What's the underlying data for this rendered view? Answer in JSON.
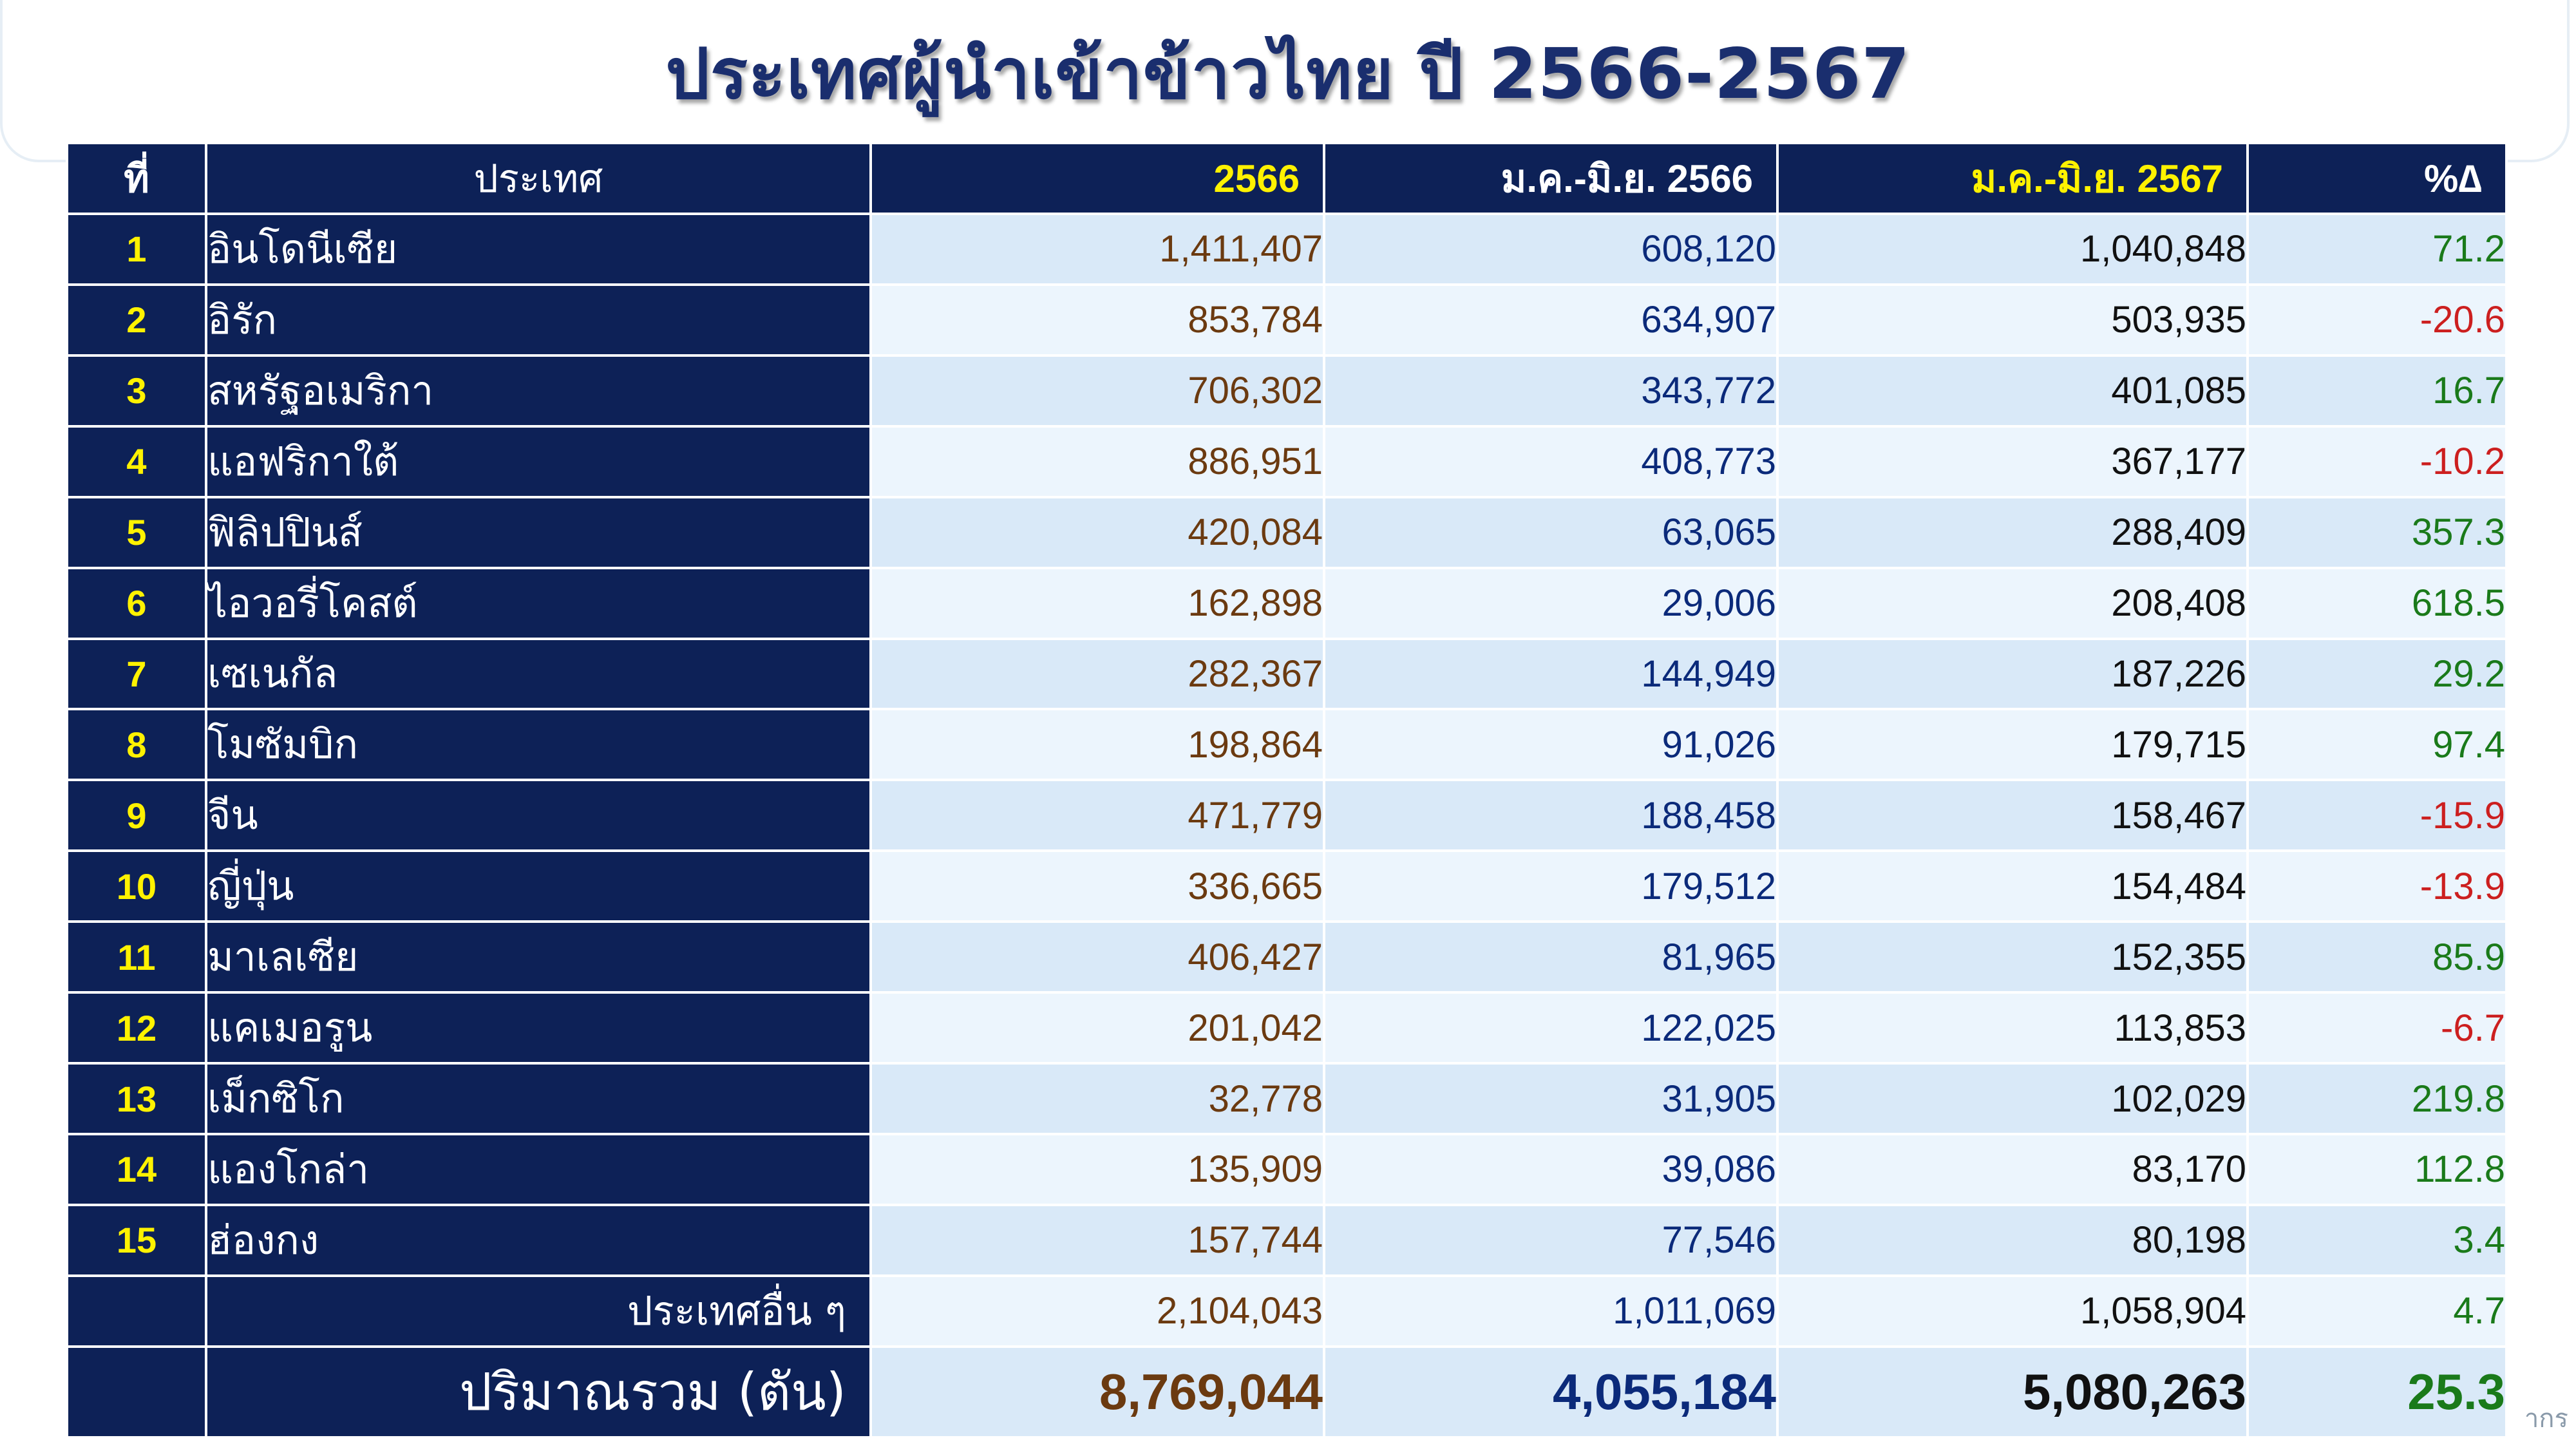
{
  "title": "ประเทศผู้นำเข้าข้าวไทย ปี 2566-2567",
  "table": {
    "headers": {
      "rank": "ที่",
      "country": "ประเทศ",
      "y2566": "2566",
      "jan_jun_2566": "ม.ค.-มิ.ย. 2566",
      "jan_jun_2567": "ม.ค.-มิ.ย. 2567",
      "pct_change": "%∆"
    },
    "rows": [
      {
        "rank": "1",
        "country": "อินโดนีเซีย",
        "y2566": "1,411,407",
        "jan_jun_2566": "608,120",
        "jan_jun_2567": "1,040,848",
        "pct_change": "71.2"
      },
      {
        "rank": "2",
        "country": "อิรัก",
        "y2566": "853,784",
        "jan_jun_2566": "634,907",
        "jan_jun_2567": "503,935",
        "pct_change": "-20.6"
      },
      {
        "rank": "3",
        "country": "สหรัฐอเมริกา",
        "y2566": "706,302",
        "jan_jun_2566": "343,772",
        "jan_jun_2567": "401,085",
        "pct_change": "16.7"
      },
      {
        "rank": "4",
        "country": "แอฟริกาใต้",
        "y2566": "886,951",
        "jan_jun_2566": "408,773",
        "jan_jun_2567": "367,177",
        "pct_change": "-10.2"
      },
      {
        "rank": "5",
        "country": "ฟิลิปปินส์",
        "y2566": "420,084",
        "jan_jun_2566": "63,065",
        "jan_jun_2567": "288,409",
        "pct_change": "357.3"
      },
      {
        "rank": "6",
        "country": "ไอวอรี่โคสต์",
        "y2566": "162,898",
        "jan_jun_2566": "29,006",
        "jan_jun_2567": "208,408",
        "pct_change": "618.5"
      },
      {
        "rank": "7",
        "country": "เซเนกัล",
        "y2566": "282,367",
        "jan_jun_2566": "144,949",
        "jan_jun_2567": "187,226",
        "pct_change": "29.2"
      },
      {
        "rank": "8",
        "country": "โมซัมบิก",
        "y2566": "198,864",
        "jan_jun_2566": "91,026",
        "jan_jun_2567": "179,715",
        "pct_change": "97.4"
      },
      {
        "rank": "9",
        "country": "จีน",
        "y2566": "471,779",
        "jan_jun_2566": "188,458",
        "jan_jun_2567": "158,467",
        "pct_change": "-15.9"
      },
      {
        "rank": "10",
        "country": "ญี่ปุ่น",
        "y2566": "336,665",
        "jan_jun_2566": "179,512",
        "jan_jun_2567": "154,484",
        "pct_change": "-13.9"
      },
      {
        "rank": "11",
        "country": "มาเลเซีย",
        "y2566": "406,427",
        "jan_jun_2566": "81,965",
        "jan_jun_2567": "152,355",
        "pct_change": "85.9"
      },
      {
        "rank": "12",
        "country": "แคเมอรูน",
        "y2566": "201,042",
        "jan_jun_2566": "122,025",
        "jan_jun_2567": "113,853",
        "pct_change": "-6.7"
      },
      {
        "rank": "13",
        "country": "เม็กซิโก",
        "y2566": "32,778",
        "jan_jun_2566": "31,905",
        "jan_jun_2567": "102,029",
        "pct_change": "219.8"
      },
      {
        "rank": "14",
        "country": "แองโกล่า",
        "y2566": "135,909",
        "jan_jun_2566": "39,086",
        "jan_jun_2567": "83,170",
        "pct_change": "112.8"
      },
      {
        "rank": "15",
        "country": "ฮ่องกง",
        "y2566": "157,744",
        "jan_jun_2566": "77,546",
        "jan_jun_2567": "80,198",
        "pct_change": "3.4"
      }
    ],
    "others": {
      "label": "ประเทศอื่น ๆ",
      "y2566": "2,104,043",
      "jan_jun_2566": "1,011,069",
      "jan_jun_2567": "1,058,904",
      "pct_change": "4.7"
    },
    "total": {
      "label": "ปริมาณรวม (ตัน)",
      "y2566": "8,769,044",
      "jan_jun_2566": "4,055,184",
      "jan_jun_2567": "5,080,263",
      "pct_change": "25.3"
    }
  },
  "source_fragment": "ากร",
  "colors": {
    "header_bg": "#0d2157",
    "rank_text": "#fff200",
    "title_text": "#1a2e6e",
    "value_2566": "#6b3a10",
    "value_jan_jun_2566": "#0b2a7a",
    "positive": "#1a7a1a",
    "negative": "#cc1f1f",
    "row_band_a": "#d9e9f8",
    "row_band_b": "#ecf5fd"
  }
}
